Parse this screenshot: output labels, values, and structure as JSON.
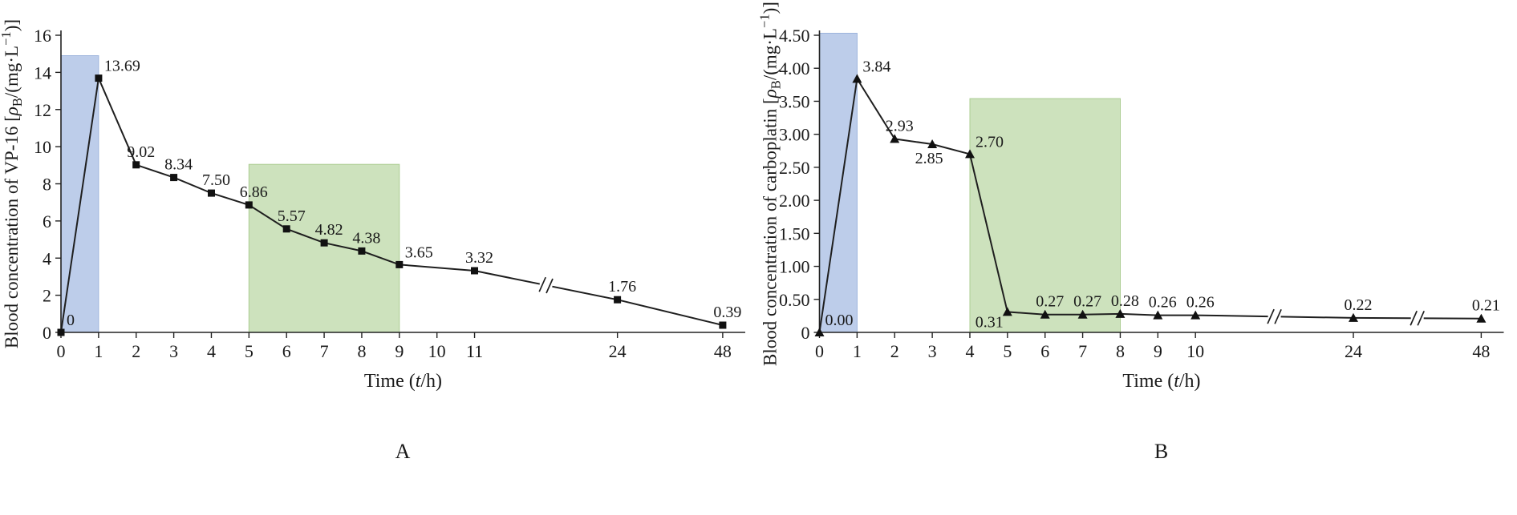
{
  "figure": {
    "background": "#ffffff",
    "panels": [
      "A",
      "B"
    ]
  },
  "colors": {
    "axis": "#222222",
    "line": "#1f1f1f",
    "marker": "#111111",
    "text": "#1a1a1a",
    "point_label": "#3c3c3c",
    "region_blue": "#b6c8e8",
    "region_blue_edge": "#9db4dc",
    "region_green": "#c8dfb6",
    "region_green_edge": "#abcd92"
  },
  "chart_data": [
    {
      "type": "line",
      "panel_label": "A",
      "marker": "square",
      "xlabel": "Time (*t*/h)",
      "ylabel": "Blood concentration of VP-16 [*ρ*_B_/(mg·L^−1^)]",
      "x": [
        0,
        1,
        2,
        3,
        4,
        5,
        6,
        7,
        8,
        9,
        11,
        24,
        48
      ],
      "y": [
        0,
        13.69,
        9.02,
        8.34,
        7.5,
        6.86,
        5.57,
        4.82,
        4.38,
        3.65,
        3.32,
        1.76,
        0.39
      ],
      "point_labels": [
        "0",
        "13.69",
        "9.02",
        "8.34",
        "7.50",
        "6.86",
        "5.57",
        "4.82",
        "4.38",
        "3.65",
        "3.32",
        "1.76",
        "0.39"
      ],
      "label_pos": [
        "above-right",
        "above-right",
        "above",
        "above",
        "above",
        "above",
        "above",
        "above",
        "above",
        "above-right",
        "above",
        "above",
        "above"
      ],
      "x_tick_values": [
        0,
        1,
        2,
        3,
        4,
        5,
        6,
        7,
        8,
        9,
        10,
        11,
        24,
        48
      ],
      "x_tick_labels": [
        "0",
        "1",
        "2",
        "3",
        "4",
        "5",
        "6",
        "7",
        "8",
        "9",
        "10",
        "11",
        "24",
        "48"
      ],
      "x_slots": [
        0,
        1,
        2,
        3,
        4,
        5,
        6,
        7,
        8,
        9,
        10,
        11,
        14.8,
        17.6
      ],
      "x_axis_end_slot": 18.2,
      "axis_breaks": [
        {
          "between": [
            11,
            24
          ]
        }
      ],
      "ylim": [
        0,
        16
      ],
      "y_tick_values": [
        0,
        2,
        4,
        6,
        8,
        10,
        12,
        14,
        16
      ],
      "y_tick_labels": [
        "0",
        "2",
        "4",
        "6",
        "8",
        "10",
        "12",
        "14",
        "16"
      ],
      "regions": [
        {
          "fill": "blue",
          "x0": 0,
          "x1": 1,
          "y0": 0,
          "y1": 14.9
        },
        {
          "fill": "green",
          "x0": 5,
          "x1": 9,
          "y0": 0,
          "y1": 9.05
        }
      ],
      "grid": false,
      "legend": null
    },
    {
      "type": "line",
      "panel_label": "B",
      "marker": "triangle",
      "xlabel": "Time (*t*/h)",
      "ylabel": "Blood concentration of carboplatin [*ρ*_B_/(mg·L^−1^)]",
      "x": [
        0,
        1,
        2,
        3,
        4,
        5,
        6,
        7,
        8,
        9,
        10,
        24,
        48
      ],
      "y": [
        0.0,
        3.84,
        2.93,
        2.85,
        2.7,
        0.31,
        0.27,
        0.27,
        0.28,
        0.26,
        0.26,
        0.22,
        0.21
      ],
      "point_labels": [
        "0.00",
        "3.84",
        "2.93",
        "2.85",
        "2.70",
        "0.31",
        "0.27",
        "0.27",
        "0.28",
        "0.26",
        "0.26",
        "0.22",
        "0.21"
      ],
      "label_pos": [
        "above-right",
        "above-right",
        "above",
        "below",
        "above-right",
        "below-left",
        "above",
        "above",
        "above",
        "above",
        "above",
        "above",
        "above"
      ],
      "x_tick_values": [
        0,
        1,
        2,
        3,
        4,
        5,
        6,
        7,
        8,
        9,
        10,
        24,
        48
      ],
      "x_tick_labels": [
        "0",
        "1",
        "2",
        "3",
        "4",
        "5",
        "6",
        "7",
        "8",
        "9",
        "10",
        "24",
        "48"
      ],
      "x_slots": [
        0,
        1,
        2,
        3,
        4,
        5,
        6,
        7,
        8,
        9,
        10,
        14.2,
        17.6
      ],
      "x_axis_end_slot": 18.2,
      "axis_breaks": [
        {
          "between": [
            10,
            24
          ]
        },
        {
          "between": [
            24,
            48
          ]
        }
      ],
      "ylim": [
        0,
        4.5
      ],
      "y_tick_values": [
        0,
        0.5,
        1,
        1.5,
        2,
        2.5,
        3,
        3.5,
        4,
        4.5
      ],
      "y_tick_labels": [
        "0",
        "0.50",
        "1.00",
        "1.50",
        "2.00",
        "2.50",
        "3.00",
        "3.50",
        "4.00",
        "4.50"
      ],
      "regions": [
        {
          "fill": "blue",
          "x0": 0,
          "x1": 1,
          "y0": 0,
          "y1": 4.53
        },
        {
          "fill": "green",
          "x0": 4,
          "x1": 8,
          "y0": 0,
          "y1": 3.54
        }
      ],
      "grid": false,
      "legend": null
    }
  ]
}
